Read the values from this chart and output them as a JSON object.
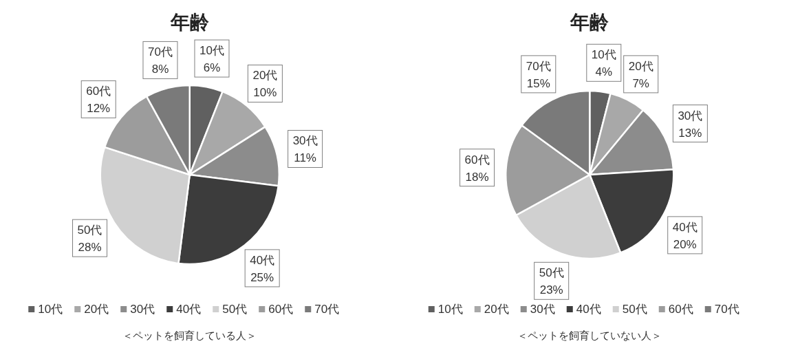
{
  "chart_data": [
    {
      "type": "pie",
      "title": "年齢",
      "categories": [
        "10代",
        "20代",
        "30代",
        "40代",
        "50代",
        "60代",
        "70代"
      ],
      "values": [
        6,
        10,
        11,
        25,
        28,
        12,
        8
      ],
      "value_labels": [
        "6%",
        "10%",
        "11%",
        "25%",
        "28%",
        "12%",
        "8%"
      ],
      "colors": [
        "#606060",
        "#a8a8a8",
        "#8c8c8c",
        "#3c3c3c",
        "#d0d0d0",
        "#9c9c9c",
        "#7a7a7a"
      ],
      "legend": "bottom",
      "annotations": [
        "＜ペットを飼育している人＞"
      ]
    },
    {
      "type": "pie",
      "title": "年齢",
      "categories": [
        "10代",
        "20代",
        "30代",
        "40代",
        "50代",
        "60代",
        "70代"
      ],
      "values": [
        4,
        7,
        13,
        20,
        23,
        18,
        15
      ],
      "value_labels": [
        "4%",
        "7%",
        "13%",
        "20%",
        "23%",
        "18%",
        "15%"
      ],
      "colors": [
        "#606060",
        "#a8a8a8",
        "#8c8c8c",
        "#3c3c3c",
        "#d0d0d0",
        "#9c9c9c",
        "#7a7a7a"
      ],
      "legend": "bottom",
      "annotations": [
        "＜ペットを飼育していない人＞"
      ]
    }
  ]
}
